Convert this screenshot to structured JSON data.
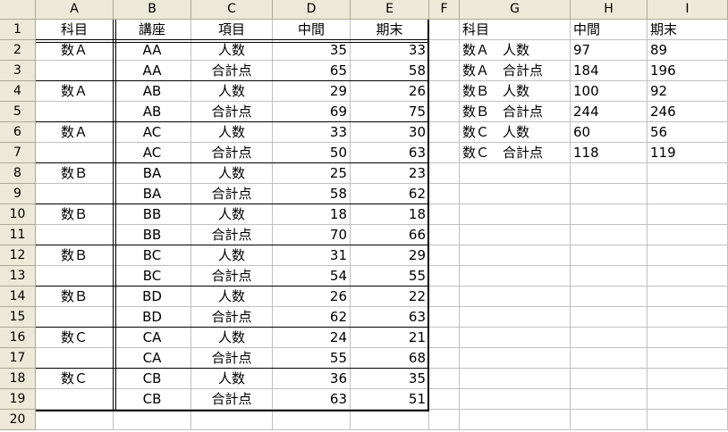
{
  "columns": [
    "A",
    "B",
    "C",
    "D",
    "E",
    "F",
    "G",
    "H",
    "I"
  ],
  "rows": [
    "1",
    "2",
    "3",
    "4",
    "5",
    "6",
    "7",
    "8",
    "9",
    "10",
    "11",
    "12",
    "13",
    "14",
    "15",
    "16",
    "17",
    "18",
    "19",
    "20"
  ],
  "left_table": {
    "headers": [
      "科目",
      "講座",
      "項目",
      "中間",
      "期末"
    ],
    "rows": [
      [
        "数Ａ",
        "AA",
        "人数",
        "35",
        "33"
      ],
      [
        "",
        "AA",
        "合計点",
        "65",
        "58"
      ],
      [
        "数Ａ",
        "AB",
        "人数",
        "29",
        "26"
      ],
      [
        "",
        "AB",
        "合計点",
        "69",
        "75"
      ],
      [
        "数Ａ",
        "AC",
        "人数",
        "33",
        "30"
      ],
      [
        "",
        "AC",
        "合計点",
        "50",
        "63"
      ],
      [
        "数Ｂ",
        "BA",
        "人数",
        "25",
        "23"
      ],
      [
        "",
        "BA",
        "合計点",
        "58",
        "62"
      ],
      [
        "数Ｂ",
        "BB",
        "人数",
        "18",
        "18"
      ],
      [
        "",
        "BB",
        "合計点",
        "70",
        "66"
      ],
      [
        "数Ｂ",
        "BC",
        "人数",
        "31",
        "29"
      ],
      [
        "",
        "BC",
        "合計点",
        "54",
        "55"
      ],
      [
        "数Ｂ",
        "BD",
        "人数",
        "26",
        "22"
      ],
      [
        "",
        "BD",
        "合計点",
        "62",
        "63"
      ],
      [
        "数Ｃ",
        "CA",
        "人数",
        "24",
        "21"
      ],
      [
        "",
        "CA",
        "合計点",
        "55",
        "68"
      ],
      [
        "数Ｃ",
        "CB",
        "人数",
        "36",
        "35"
      ],
      [
        "",
        "CB",
        "合計点",
        "63",
        "51"
      ]
    ]
  },
  "right_table": {
    "headers": [
      "科目",
      "中間",
      "期末"
    ],
    "rows": [
      [
        "数Ａ　人数",
        "97",
        "89"
      ],
      [
        "数Ａ　合計点",
        "184",
        "196"
      ],
      [
        "数Ｂ　人数",
        "100",
        "92"
      ],
      [
        "数Ｂ　合計点",
        "244",
        "246"
      ],
      [
        "数Ｃ　人数",
        "60",
        "56"
      ],
      [
        "数Ｃ　合計点",
        "118",
        "119"
      ]
    ]
  }
}
